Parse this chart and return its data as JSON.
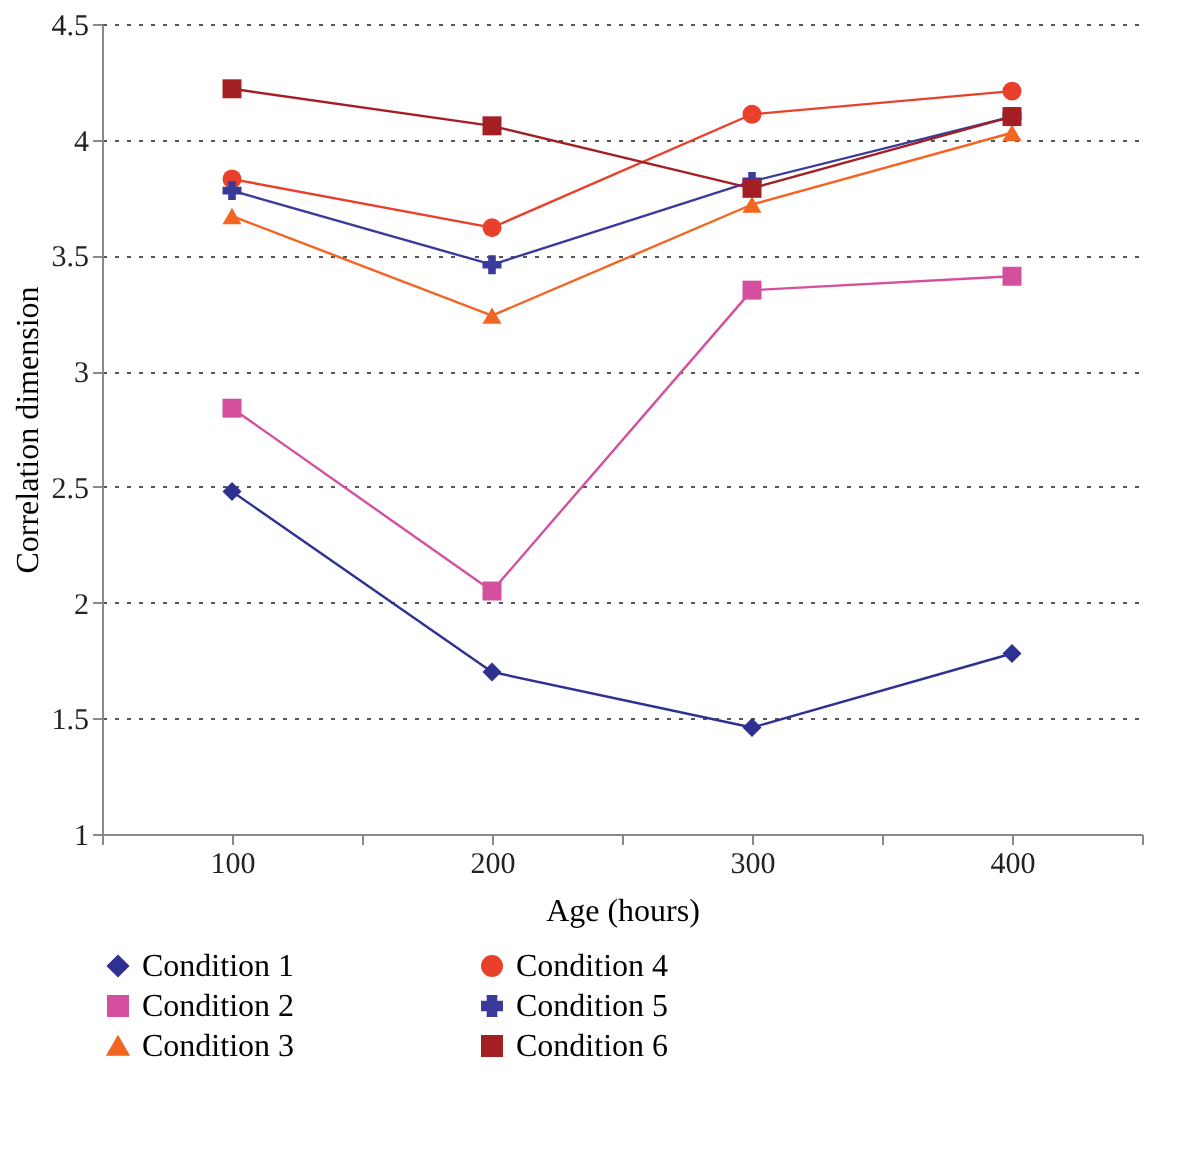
{
  "chart_data": {
    "type": "line",
    "xlabel": "Age (hours)",
    "ylabel": "Correlation dimension",
    "x": [
      100,
      200,
      300,
      400
    ],
    "xlim": [
      50,
      450
    ],
    "xticks": [
      {
        "value": 50,
        "label": null
      },
      100,
      {
        "value": 150,
        "label": null
      },
      200,
      {
        "value": 250,
        "label": null
      },
      300,
      {
        "value": 350,
        "label": null
      },
      400,
      {
        "value": 450,
        "label": null
      }
    ],
    "ylim": [
      1,
      4.5
    ],
    "yticks": [
      1,
      1.5,
      2,
      2.5,
      3,
      3.5,
      4,
      4.5
    ],
    "grid": "y",
    "legend": "bottom",
    "line_style": "solid",
    "series": [
      {
        "name": "Condition 1",
        "color": "#2e3192",
        "marker": "diamond",
        "values": [
          2.48,
          1.7,
          1.46,
          1.78
        ]
      },
      {
        "name": "Condition 2",
        "color": "#d4509e",
        "marker": "square",
        "values": [
          2.84,
          2.05,
          3.35,
          3.41
        ]
      },
      {
        "name": "Condition 3",
        "color": "#f26522",
        "marker": "triangle",
        "values": [
          3.67,
          3.24,
          3.72,
          4.03
        ]
      },
      {
        "name": "Condition 4",
        "color": "#e8402b",
        "marker": "circle",
        "values": [
          3.83,
          3.62,
          4.11,
          4.21
        ]
      },
      {
        "name": "Condition 5",
        "color": "#3a3a9a",
        "marker": "cross",
        "values": [
          3.78,
          3.46,
          3.82,
          4.1
        ]
      },
      {
        "name": "Condition 6",
        "color": "#a31f24",
        "marker": "square",
        "values": [
          4.22,
          4.06,
          3.79,
          4.1
        ]
      }
    ]
  }
}
